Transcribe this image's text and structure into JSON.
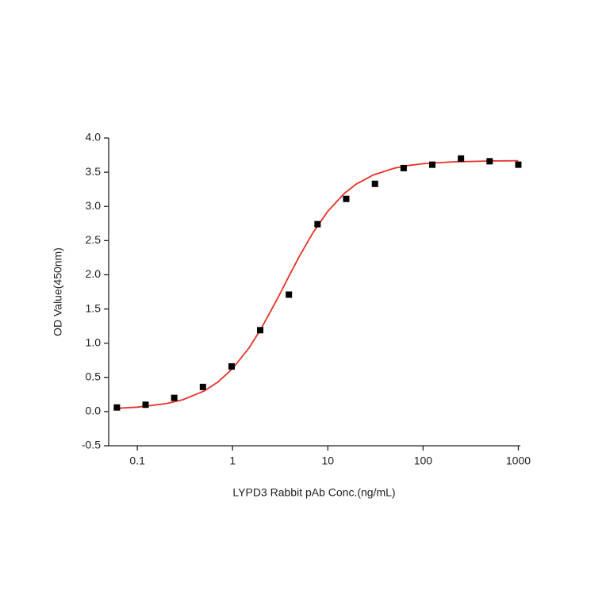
{
  "chart_data": {
    "type": "scatter",
    "x_label": "LYPD3 Rabbit pAb Conc.(ng/mL)",
    "y_label": "OD Value(450nm)",
    "x_scale": "log",
    "xlim": [
      0.05,
      1050
    ],
    "xticks": [
      0.1,
      1,
      10,
      100,
      1000
    ],
    "ylim": [
      -0.5,
      4.0
    ],
    "yticks": [
      {
        "value": -0.5,
        "label": "-0.5"
      },
      {
        "value": 0,
        "label": "0.0"
      },
      {
        "value": 0.5,
        "label": "0.5"
      },
      {
        "value": 1,
        "label": "1.0"
      },
      {
        "value": 1.5,
        "label": "1.5"
      },
      {
        "value": 2,
        "label": "2.0"
      },
      {
        "value": 2.5,
        "label": "2.5"
      },
      {
        "value": 3,
        "label": "3.0"
      },
      {
        "value": 3.5,
        "label": "3.5"
      },
      {
        "value": 4,
        "label": "4.0"
      }
    ],
    "series": [
      {
        "type": "scatter",
        "color": "#000000",
        "x": [
          0.061,
          0.122,
          0.244,
          0.488,
          0.977,
          1.95,
          3.9,
          7.8,
          15.6,
          31.25,
          62.5,
          125,
          250,
          500,
          1000
        ],
        "values": [
          0.06,
          0.1,
          0.2,
          0.36,
          0.66,
          1.19,
          1.71,
          2.74,
          3.11,
          3.33,
          3.56,
          3.61,
          3.7,
          3.66,
          3.61
        ]
      },
      {
        "type": "line",
        "color": "#e8312a",
        "x": [
          0.06,
          0.1,
          0.2,
          0.3,
          0.5,
          0.7,
          1,
          1.5,
          2,
          3,
          4,
          5,
          7,
          10,
          15,
          20,
          30,
          50,
          70,
          100,
          200,
          500,
          1000
        ],
        "values": [
          0.048,
          0.065,
          0.116,
          0.173,
          0.299,
          0.43,
          0.627,
          0.938,
          1.216,
          1.668,
          2.008,
          2.265,
          2.619,
          2.929,
          3.193,
          3.328,
          3.46,
          3.559,
          3.597,
          3.624,
          3.651,
          3.664,
          3.668
        ]
      }
    ]
  }
}
